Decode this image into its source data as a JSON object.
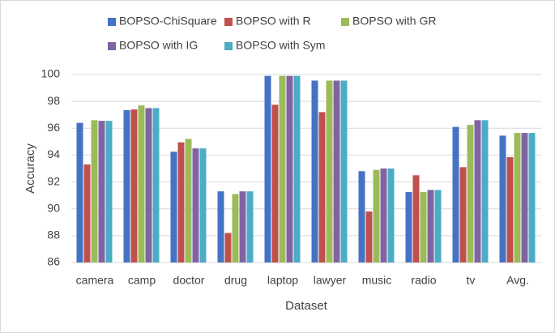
{
  "chart_data": {
    "type": "bar",
    "x_label": "Dataset",
    "y_label": "Accuracy",
    "categories": [
      "camera",
      "camp",
      "doctor",
      "drug",
      "laptop",
      "lawyer",
      "music",
      "radio",
      "tv",
      "Avg."
    ],
    "series": [
      {
        "name": "BOPSO-ChiSquare",
        "color": "#4472c4",
        "values": [
          96.4,
          97.35,
          94.25,
          91.3,
          99.9,
          99.55,
          92.8,
          91.25,
          96.1,
          95.45
        ]
      },
      {
        "name": "BOPSO with R",
        "color": "#c0504d",
        "values": [
          93.3,
          97.4,
          94.95,
          88.2,
          97.75,
          97.2,
          89.8,
          92.5,
          93.1,
          93.85
        ]
      },
      {
        "name": "BOPSO with GR",
        "color": "#9bbb59",
        "values": [
          96.6,
          97.7,
          95.2,
          91.1,
          99.9,
          99.55,
          92.9,
          91.25,
          96.25,
          95.65
        ]
      },
      {
        "name": "BOPSO with IG",
        "color": "#8064a2",
        "values": [
          96.55,
          97.5,
          94.5,
          91.3,
          99.9,
          99.55,
          93.0,
          91.4,
          96.6,
          95.65
        ]
      },
      {
        "name": "BOPSO with Sym",
        "color": "#4bacc6",
        "values": [
          96.55,
          97.5,
          94.5,
          91.3,
          99.9,
          99.55,
          93.0,
          91.4,
          96.6,
          95.65
        ]
      }
    ],
    "ylim": [
      86,
      100
    ],
    "yticks": [
      86,
      88,
      90,
      92,
      94,
      96,
      98,
      100
    ],
    "grid": true
  }
}
